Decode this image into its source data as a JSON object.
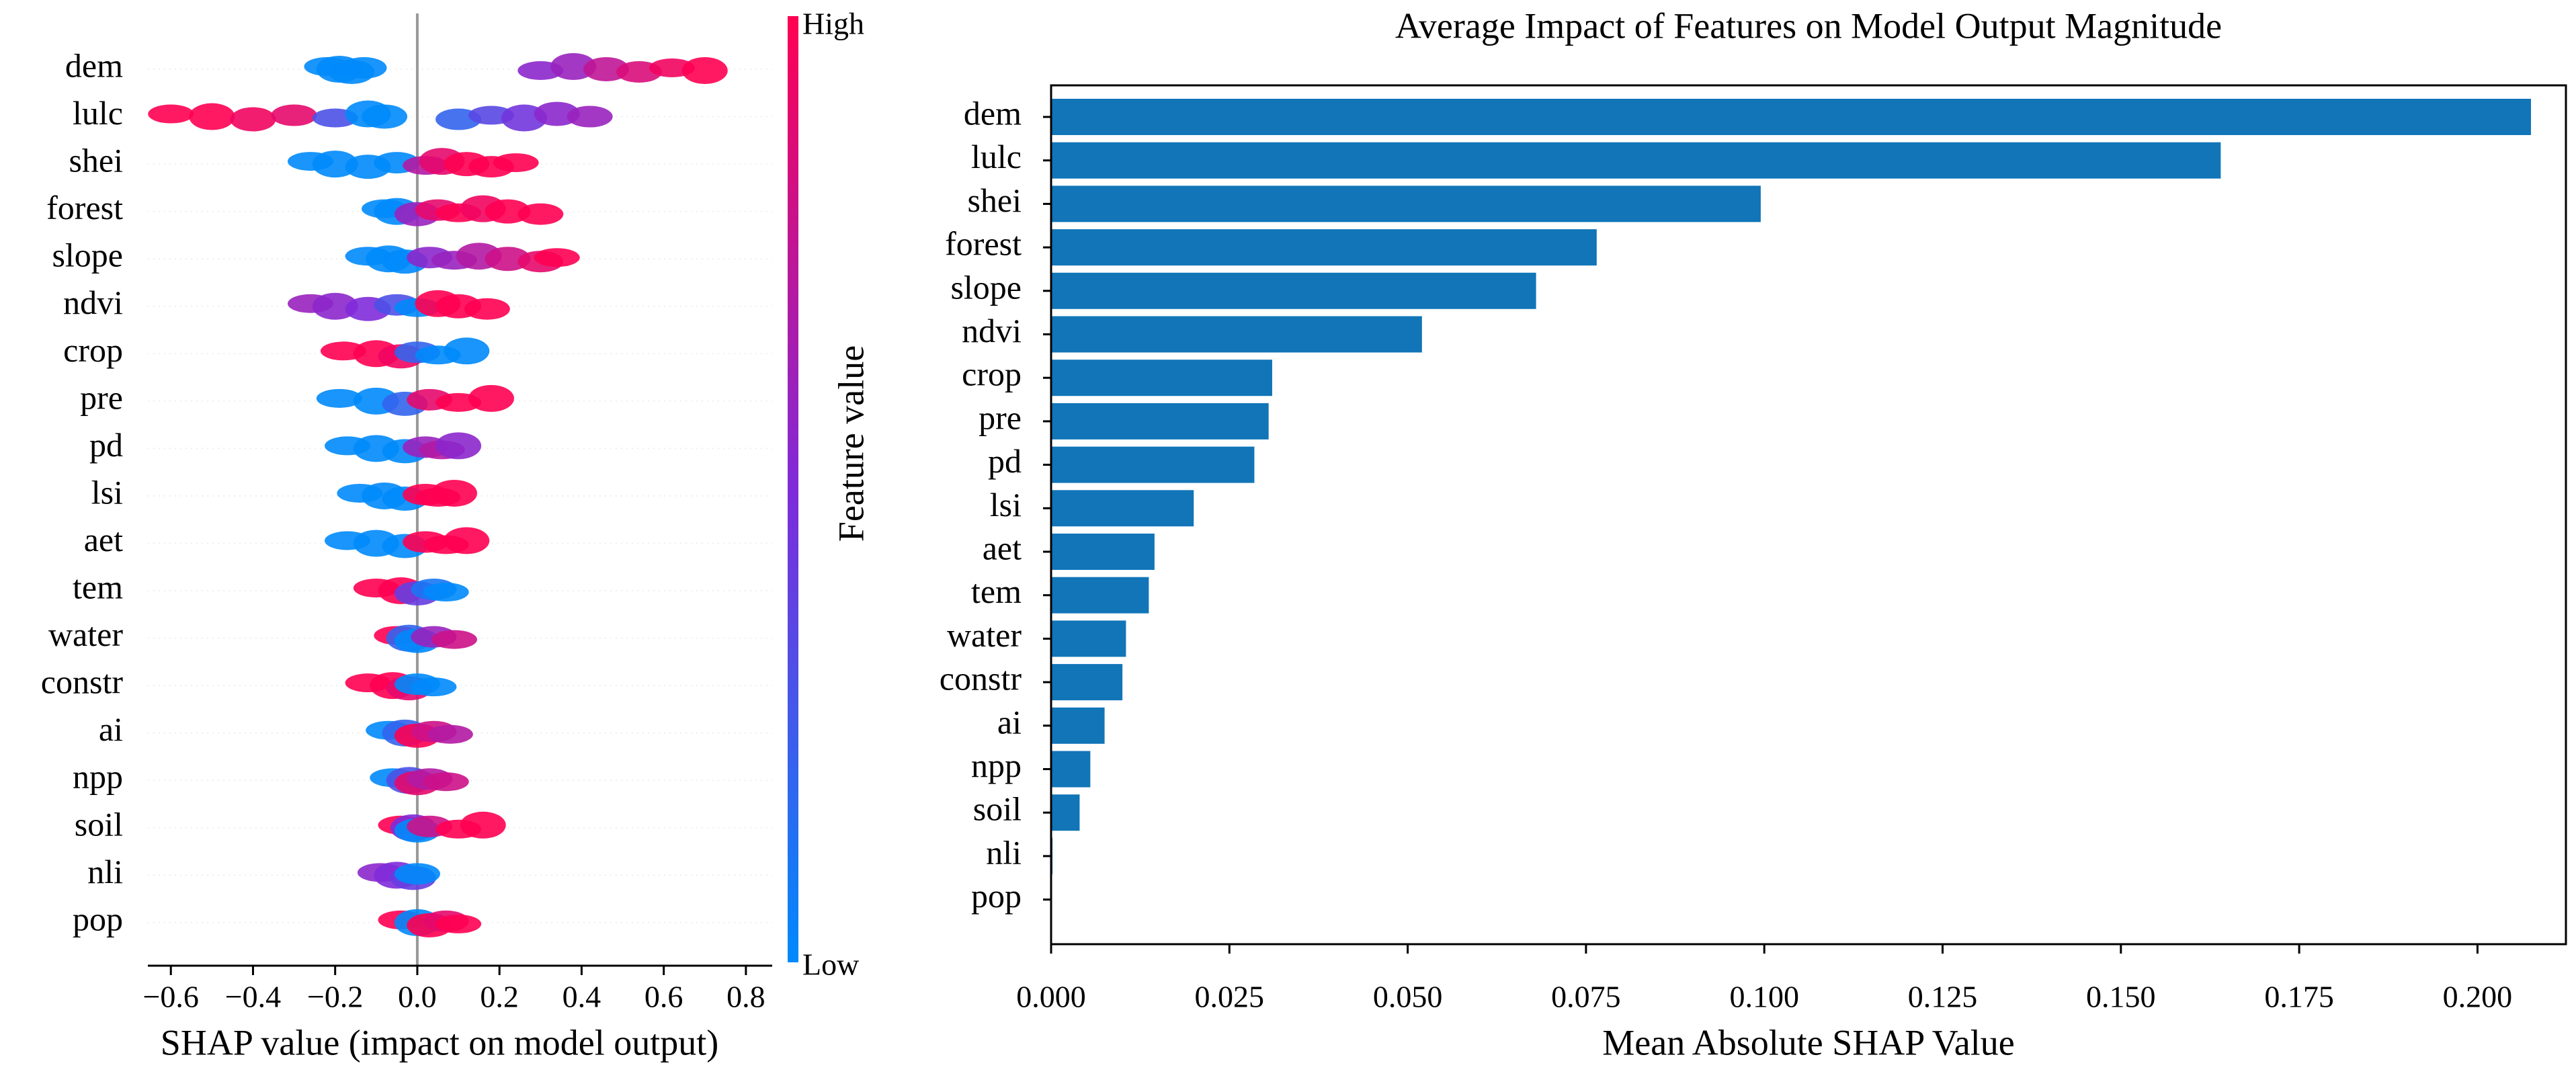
{
  "chart_data": [
    {
      "type": "beeswarm",
      "x_label": "SHAP value (impact on model output)",
      "colorbar_label": "Feature value",
      "colorbar_high": "High",
      "colorbar_low": "Low",
      "colormap": [
        "#008afb",
        "#7f2bd9",
        "#ff0052"
      ],
      "categories": [
        "dem",
        "lulc",
        "shei",
        "forest",
        "slope",
        "ndvi",
        "crop",
        "pre",
        "pd",
        "lsi",
        "aet",
        "tem",
        "water",
        "constr",
        "ai",
        "npp",
        "soil",
        "nli",
        "pop"
      ],
      "values": [
        [
          -0.22,
          -0.19,
          -0.16,
          -0.13,
          0.3,
          0.38,
          0.46,
          0.54,
          0.62,
          0.7
        ],
        [
          -0.6,
          -0.5,
          -0.4,
          -0.3,
          -0.2,
          -0.12,
          -0.08,
          0.1,
          0.18,
          0.26,
          0.34,
          0.42
        ],
        [
          -0.26,
          -0.2,
          -0.12,
          -0.05,
          0.02,
          0.06,
          0.12,
          0.18,
          0.24
        ],
        [
          -0.08,
          -0.05,
          0,
          0.05,
          0.1,
          0.16,
          0.22,
          0.3
        ],
        [
          -0.12,
          -0.07,
          -0.03,
          0.03,
          0.09,
          0.15,
          0.22,
          0.3,
          0.34
        ],
        [
          -0.26,
          -0.2,
          -0.12,
          -0.05,
          0,
          0.05,
          0.1,
          0.17
        ],
        [
          -0.18,
          -0.1,
          -0.04,
          0,
          0.05,
          0.12
        ],
        [
          -0.19,
          -0.1,
          -0.03,
          0.03,
          0.1,
          0.18
        ],
        [
          -0.17,
          -0.1,
          -0.03,
          0.02,
          0.06,
          0.1
        ],
        [
          -0.14,
          -0.08,
          -0.03,
          0.02,
          0.05,
          0.09
        ],
        [
          -0.17,
          -0.1,
          -0.03,
          0.02,
          0.07,
          0.12
        ],
        [
          -0.1,
          -0.04,
          0,
          0.04,
          0.07
        ],
        [
          -0.05,
          -0.02,
          0,
          0.04,
          0.09
        ],
        [
          -0.12,
          -0.06,
          -0.02,
          0,
          0.04
        ],
        [
          -0.07,
          -0.03,
          0,
          0.04,
          0.08
        ],
        [
          -0.06,
          -0.02,
          0,
          0.03,
          0.07
        ],
        [
          -0.04,
          -0.01,
          0,
          0.03,
          0.1,
          0.16
        ],
        [
          -0.09,
          -0.05,
          -0.01,
          0
        ],
        [
          -0.04,
          0,
          0.03,
          0.07,
          0.1
        ]
      ],
      "feature_values": [
        [
          0,
          0,
          0,
          0,
          0.55,
          0.6,
          0.75,
          0.85,
          0.95,
          1
        ],
        [
          1,
          1,
          0.95,
          0.9,
          0.3,
          0,
          0,
          0.2,
          0.35,
          0.45,
          0.55,
          0.6
        ],
        [
          0,
          0,
          0,
          0,
          0.7,
          0.9,
          1,
          1,
          1
        ],
        [
          0,
          0,
          0.6,
          0.9,
          1,
          0.95,
          1,
          1
        ],
        [
          0,
          0,
          0,
          0.55,
          0.6,
          0.7,
          0.8,
          0.9,
          1
        ],
        [
          0.6,
          0.55,
          0.5,
          0.3,
          0,
          1,
          1,
          1
        ],
        [
          1,
          1,
          0.95,
          0.2,
          0,
          0
        ],
        [
          0,
          0,
          0.2,
          0.9,
          1,
          1
        ],
        [
          0,
          0,
          0,
          0.6,
          0.7,
          0.55
        ],
        [
          0,
          0,
          0,
          1,
          1,
          1
        ],
        [
          0,
          0,
          0,
          1,
          1,
          1
        ],
        [
          1,
          1,
          0.4,
          0.1,
          0
        ],
        [
          1,
          0.2,
          0,
          0.6,
          0.8
        ],
        [
          1,
          1,
          0.9,
          0,
          0
        ],
        [
          0,
          0.2,
          1,
          0.8,
          0.7
        ],
        [
          0,
          0.3,
          0.9,
          0.7,
          0.8
        ],
        [
          1,
          0.5,
          0,
          0.8,
          1,
          1
        ],
        [
          0.55,
          0.5,
          0.4,
          0
        ],
        [
          1,
          0,
          1,
          0.9,
          1
        ]
      ],
      "xlim": [
        -0.656,
        0.864
      ],
      "xticks": [
        {
          "value": -0.6,
          "label": "−0.6"
        },
        {
          "value": -0.4,
          "label": "−0.4"
        },
        {
          "value": -0.2,
          "label": "−0.2"
        },
        {
          "value": 0,
          "label": "0.0"
        },
        0.2,
        0.4,
        0.6,
        0.8
      ]
    },
    {
      "type": "barh",
      "title": "Average Impact of Features on Model Output Magnitude",
      "x_label": "Mean Absolute SHAP Value",
      "color": "#1175b8",
      "categories": [
        "dem",
        "lulc",
        "shei",
        "forest",
        "slope",
        "ndvi",
        "crop",
        "pre",
        "pd",
        "lsi",
        "aet",
        "tem",
        "water",
        "constr",
        "ai",
        "npp",
        "soil",
        "nli",
        "pop"
      ],
      "values": [
        0.2075,
        0.164,
        0.0995,
        0.0765,
        0.068,
        0.052,
        0.031,
        0.0305,
        0.0285,
        0.02,
        0.0145,
        0.0137,
        0.0105,
        0.01,
        0.0075,
        0.0055,
        0.004,
        0.0002,
        0.0001
      ],
      "xlim": [
        0,
        0.2124
      ],
      "xticks": [
        {
          "value": 0,
          "label": "0.000"
        },
        {
          "value": 0.025,
          "label": "0.025"
        },
        {
          "value": 0.05,
          "label": "0.050"
        },
        {
          "value": 0.075,
          "label": "0.075"
        },
        {
          "value": 0.1,
          "label": "0.100"
        },
        {
          "value": 0.125,
          "label": "0.125"
        },
        {
          "value": 0.15,
          "label": "0.150"
        },
        {
          "value": 0.175,
          "label": "0.175"
        },
        {
          "value": 0.2,
          "label": "0.200"
        }
      ]
    }
  ]
}
